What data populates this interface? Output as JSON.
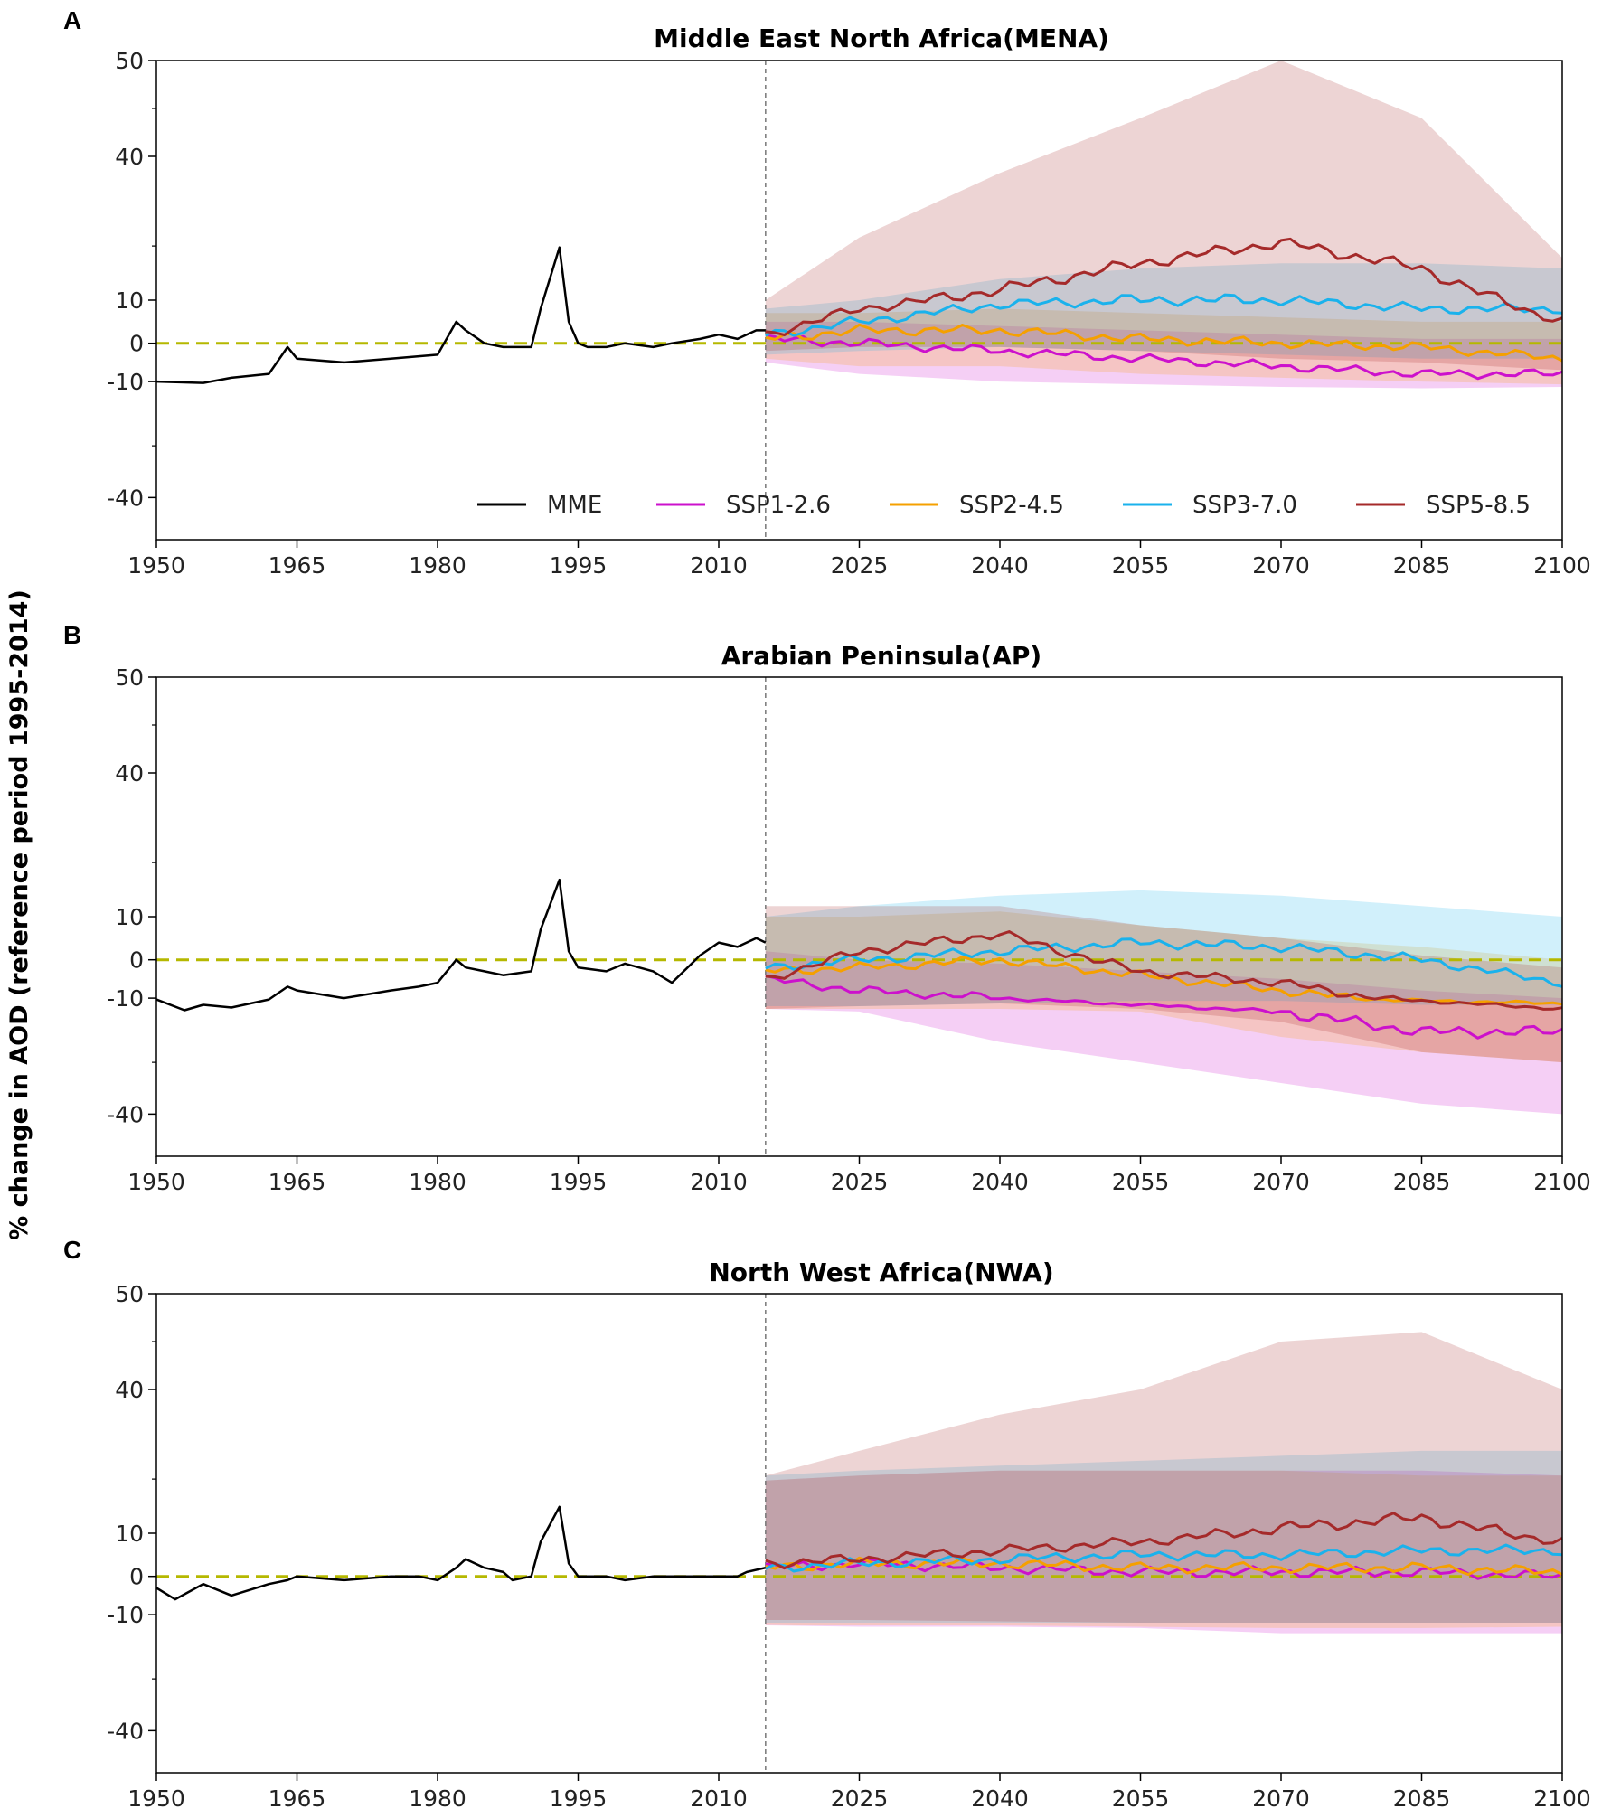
{
  "y_axis_label": "% change in AOD (reference period 1995-2014)",
  "legend": [
    "MME",
    "SSP1-2.6",
    "SSP2-4.5",
    "SSP3-7.0",
    "SSP5-8.5"
  ],
  "colors": {
    "MME": "#000000",
    "SSP1-2.6": "#cc11cc",
    "SSP2-4.5": "#f5a000",
    "SSP3-7.0": "#1ab2ec",
    "SSP5-8.5": "#a52a2a",
    "zero_line": "#b5b800",
    "split_line": "#777777"
  },
  "chart_data": [
    {
      "panel": "A",
      "type": "line",
      "title": "Middle East North Africa(MENA)",
      "x_ticks": [
        "1950",
        "1965",
        "1980",
        "1995",
        "2010",
        "2025",
        "2040",
        "2055",
        "2070",
        "2085",
        "2100"
      ],
      "y_ticks": [
        "50",
        "40",
        "10",
        "0",
        "-10",
        "-40"
      ],
      "xlim": [
        1950,
        2100
      ],
      "historical_end": 2015,
      "mme_x": [
        1950,
        1955,
        1958,
        1962,
        1964,
        1965,
        1970,
        1975,
        1980,
        1982,
        1983,
        1985,
        1987,
        1988,
        1990,
        1991,
        1993,
        1994,
        1995,
        1996,
        1998,
        2000,
        2003,
        2005,
        2008,
        2010,
        2012,
        2014,
        2015
      ],
      "mme_y": [
        -10,
        -11,
        -9,
        -8,
        -1,
        -4,
        -5,
        -4,
        -3,
        5,
        3,
        0,
        -1,
        -1,
        -1,
        8,
        20,
        5,
        0,
        -1,
        -1,
        0,
        -1,
        0,
        1,
        2,
        1,
        3,
        3
      ],
      "series": [
        {
          "name": "SSP1-2.6",
          "x": [
            2015,
            2025,
            2040,
            2055,
            2070,
            2085,
            2100
          ],
          "y": [
            1,
            0,
            -2,
            -4,
            -6,
            -8,
            -8
          ],
          "low": [
            -5,
            -8,
            -10,
            -12,
            -14,
            -15,
            -14
          ],
          "high": [
            5,
            5,
            4,
            3,
            2,
            1,
            1
          ]
        },
        {
          "name": "SSP2-4.5",
          "x": [
            2015,
            2025,
            2040,
            2055,
            2070,
            2085,
            2100
          ],
          "y": [
            1,
            3,
            3,
            1,
            0,
            -1,
            -4
          ],
          "low": [
            -4,
            -6,
            -6,
            -8,
            -9,
            -10,
            -12
          ],
          "high": [
            7,
            7,
            8,
            7,
            6,
            5,
            5
          ]
        },
        {
          "name": "SSP3-7.0",
          "x": [
            2015,
            2025,
            2040,
            2055,
            2070,
            2085,
            2100
          ],
          "y": [
            2,
            5,
            9,
            10,
            10,
            8,
            8
          ],
          "low": [
            -3,
            -2,
            -1,
            -2,
            -3,
            -4,
            -4
          ],
          "high": [
            8,
            10,
            14,
            16,
            17,
            17,
            16
          ]
        },
        {
          "name": "SSP5-8.5",
          "x": [
            2015,
            2025,
            2040,
            2055,
            2070,
            2085,
            2100
          ],
          "y": [
            2,
            8,
            12,
            17,
            21,
            16,
            5
          ],
          "low": [
            -2,
            -1,
            -1,
            -2,
            -4,
            -5,
            -7
          ],
          "high": [
            10,
            22,
            36,
            44,
            50,
            44,
            18
          ]
        }
      ]
    },
    {
      "panel": "B",
      "type": "line",
      "title": "Arabian Peninsula(AP)",
      "x_ticks": [
        "1950",
        "1965",
        "1980",
        "1995",
        "2010",
        "2025",
        "2040",
        "2055",
        "2070",
        "2085",
        "2100"
      ],
      "y_ticks": [
        "50",
        "40",
        "10",
        "0",
        "-10",
        "-40"
      ],
      "xlim": [
        1950,
        2100
      ],
      "historical_end": 2015,
      "mme_x": [
        1950,
        1953,
        1955,
        1958,
        1962,
        1964,
        1965,
        1970,
        1975,
        1978,
        1980,
        1982,
        1983,
        1985,
        1987,
        1990,
        1991,
        1993,
        1994,
        1995,
        1998,
        2000,
        2003,
        2005,
        2008,
        2010,
        2012,
        2014,
        2015
      ],
      "mme_y": [
        -11,
        -19,
        -15,
        -17,
        -11,
        -7,
        -8,
        -10,
        -8,
        -7,
        -6,
        0,
        -2,
        -3,
        -4,
        -3,
        7,
        17,
        2,
        -2,
        -3,
        -1,
        -3,
        -6,
        1,
        4,
        3,
        5,
        4
      ],
      "series": [
        {
          "name": "SSP1-2.6",
          "x": [
            2015,
            2025,
            2040,
            2055,
            2070,
            2085,
            2100
          ],
          "y": [
            -5,
            -8,
            -10,
            -15,
            -20,
            -24,
            -24
          ],
          "low": [
            -18,
            -20,
            -26,
            -30,
            -34,
            -38,
            -40
          ],
          "high": [
            2,
            0,
            -1,
            -3,
            -5,
            -8,
            -10
          ]
        },
        {
          "name": "SSP2-4.5",
          "x": [
            2015,
            2025,
            2040,
            2055,
            2070,
            2085,
            2100
          ],
          "y": [
            -3,
            -2,
            0,
            -4,
            -8,
            -12,
            -14
          ],
          "low": [
            -18,
            -18,
            -18,
            -20,
            -25,
            -28,
            -30
          ],
          "high": [
            10,
            10,
            11,
            8,
            5,
            3,
            0
          ]
        },
        {
          "name": "SSP3-7.0",
          "x": [
            2015,
            2025,
            2040,
            2055,
            2070,
            2085,
            2100
          ],
          "y": [
            -2,
            0,
            2,
            4,
            3,
            0,
            -6
          ],
          "low": [
            -16,
            -16,
            -14,
            -12,
            -12,
            -15,
            -15
          ],
          "high": [
            10,
            12,
            14,
            15,
            14,
            12,
            10
          ]
        },
        {
          "name": "SSP5-8.5",
          "x": [
            2015,
            2025,
            2040,
            2055,
            2070,
            2085,
            2100
          ],
          "y": [
            -5,
            2,
            6,
            -3,
            -6,
            -12,
            -18
          ],
          "low": [
            -18,
            -16,
            -14,
            -18,
            -22,
            -28,
            -30
          ],
          "high": [
            12,
            12,
            12,
            8,
            5,
            1,
            -2
          ]
        }
      ]
    },
    {
      "panel": "C",
      "type": "line",
      "title": "North West Africa(NWA)",
      "x_ticks": [
        "1950",
        "1965",
        "1980",
        "1995",
        "2010",
        "2025",
        "2040",
        "2055",
        "2070",
        "2085",
        "2100"
      ],
      "y_ticks": [
        "50",
        "40",
        "10",
        "0",
        "-10",
        "-40"
      ],
      "xlim": [
        1950,
        2100
      ],
      "historical_end": 2015,
      "mme_x": [
        1950,
        1952,
        1955,
        1958,
        1962,
        1964,
        1965,
        1970,
        1975,
        1978,
        1980,
        1982,
        1983,
        1985,
        1987,
        1988,
        1990,
        1991,
        1993,
        1994,
        1995,
        1998,
        2000,
        2003,
        2005,
        2008,
        2010,
        2012,
        2013,
        2015
      ],
      "mme_y": [
        -3,
        -6,
        -2,
        -5,
        -2,
        -1,
        0,
        -1,
        0,
        0,
        -1,
        2,
        4,
        2,
        1,
        -1,
        0,
        8,
        15,
        3,
        0,
        0,
        -1,
        0,
        0,
        0,
        0,
        0,
        1,
        2
      ],
      "series": [
        {
          "name": "SSP1-2.6",
          "x": [
            2015,
            2025,
            2040,
            2055,
            2070,
            2085,
            2100
          ],
          "y": [
            2,
            3,
            2,
            1,
            1,
            1,
            0
          ],
          "low": [
            -18,
            -19,
            -19,
            -20,
            -21,
            -21,
            -21
          ],
          "high": [
            20,
            21,
            22,
            22,
            22,
            22,
            21
          ]
        },
        {
          "name": "SSP2-4.5",
          "x": [
            2015,
            2025,
            2040,
            2055,
            2070,
            2085,
            2100
          ],
          "y": [
            2,
            3,
            3,
            2,
            2,
            2,
            1
          ],
          "low": [
            -17,
            -18,
            -18,
            -19,
            -20,
            -20,
            -19
          ],
          "high": [
            20,
            21,
            22,
            22,
            22,
            21,
            21
          ]
        },
        {
          "name": "SSP3-7.0",
          "x": [
            2015,
            2025,
            2040,
            2055,
            2070,
            2085,
            2100
          ],
          "y": [
            2,
            3,
            4,
            5,
            5,
            6,
            6
          ],
          "low": [
            -16,
            -16,
            -16,
            -16,
            -16,
            -16,
            -16
          ],
          "high": [
            21,
            22,
            23,
            24,
            25,
            26,
            26
          ]
        },
        {
          "name": "SSP5-8.5",
          "x": [
            2015,
            2025,
            2040,
            2055,
            2070,
            2085,
            2100
          ],
          "y": [
            3,
            4,
            6,
            8,
            11,
            13,
            8
          ],
          "low": [
            -14,
            -14,
            -15,
            -16,
            -16,
            -16,
            -16
          ],
          "high": [
            21,
            26,
            34,
            40,
            45,
            46,
            40
          ]
        }
      ]
    }
  ]
}
